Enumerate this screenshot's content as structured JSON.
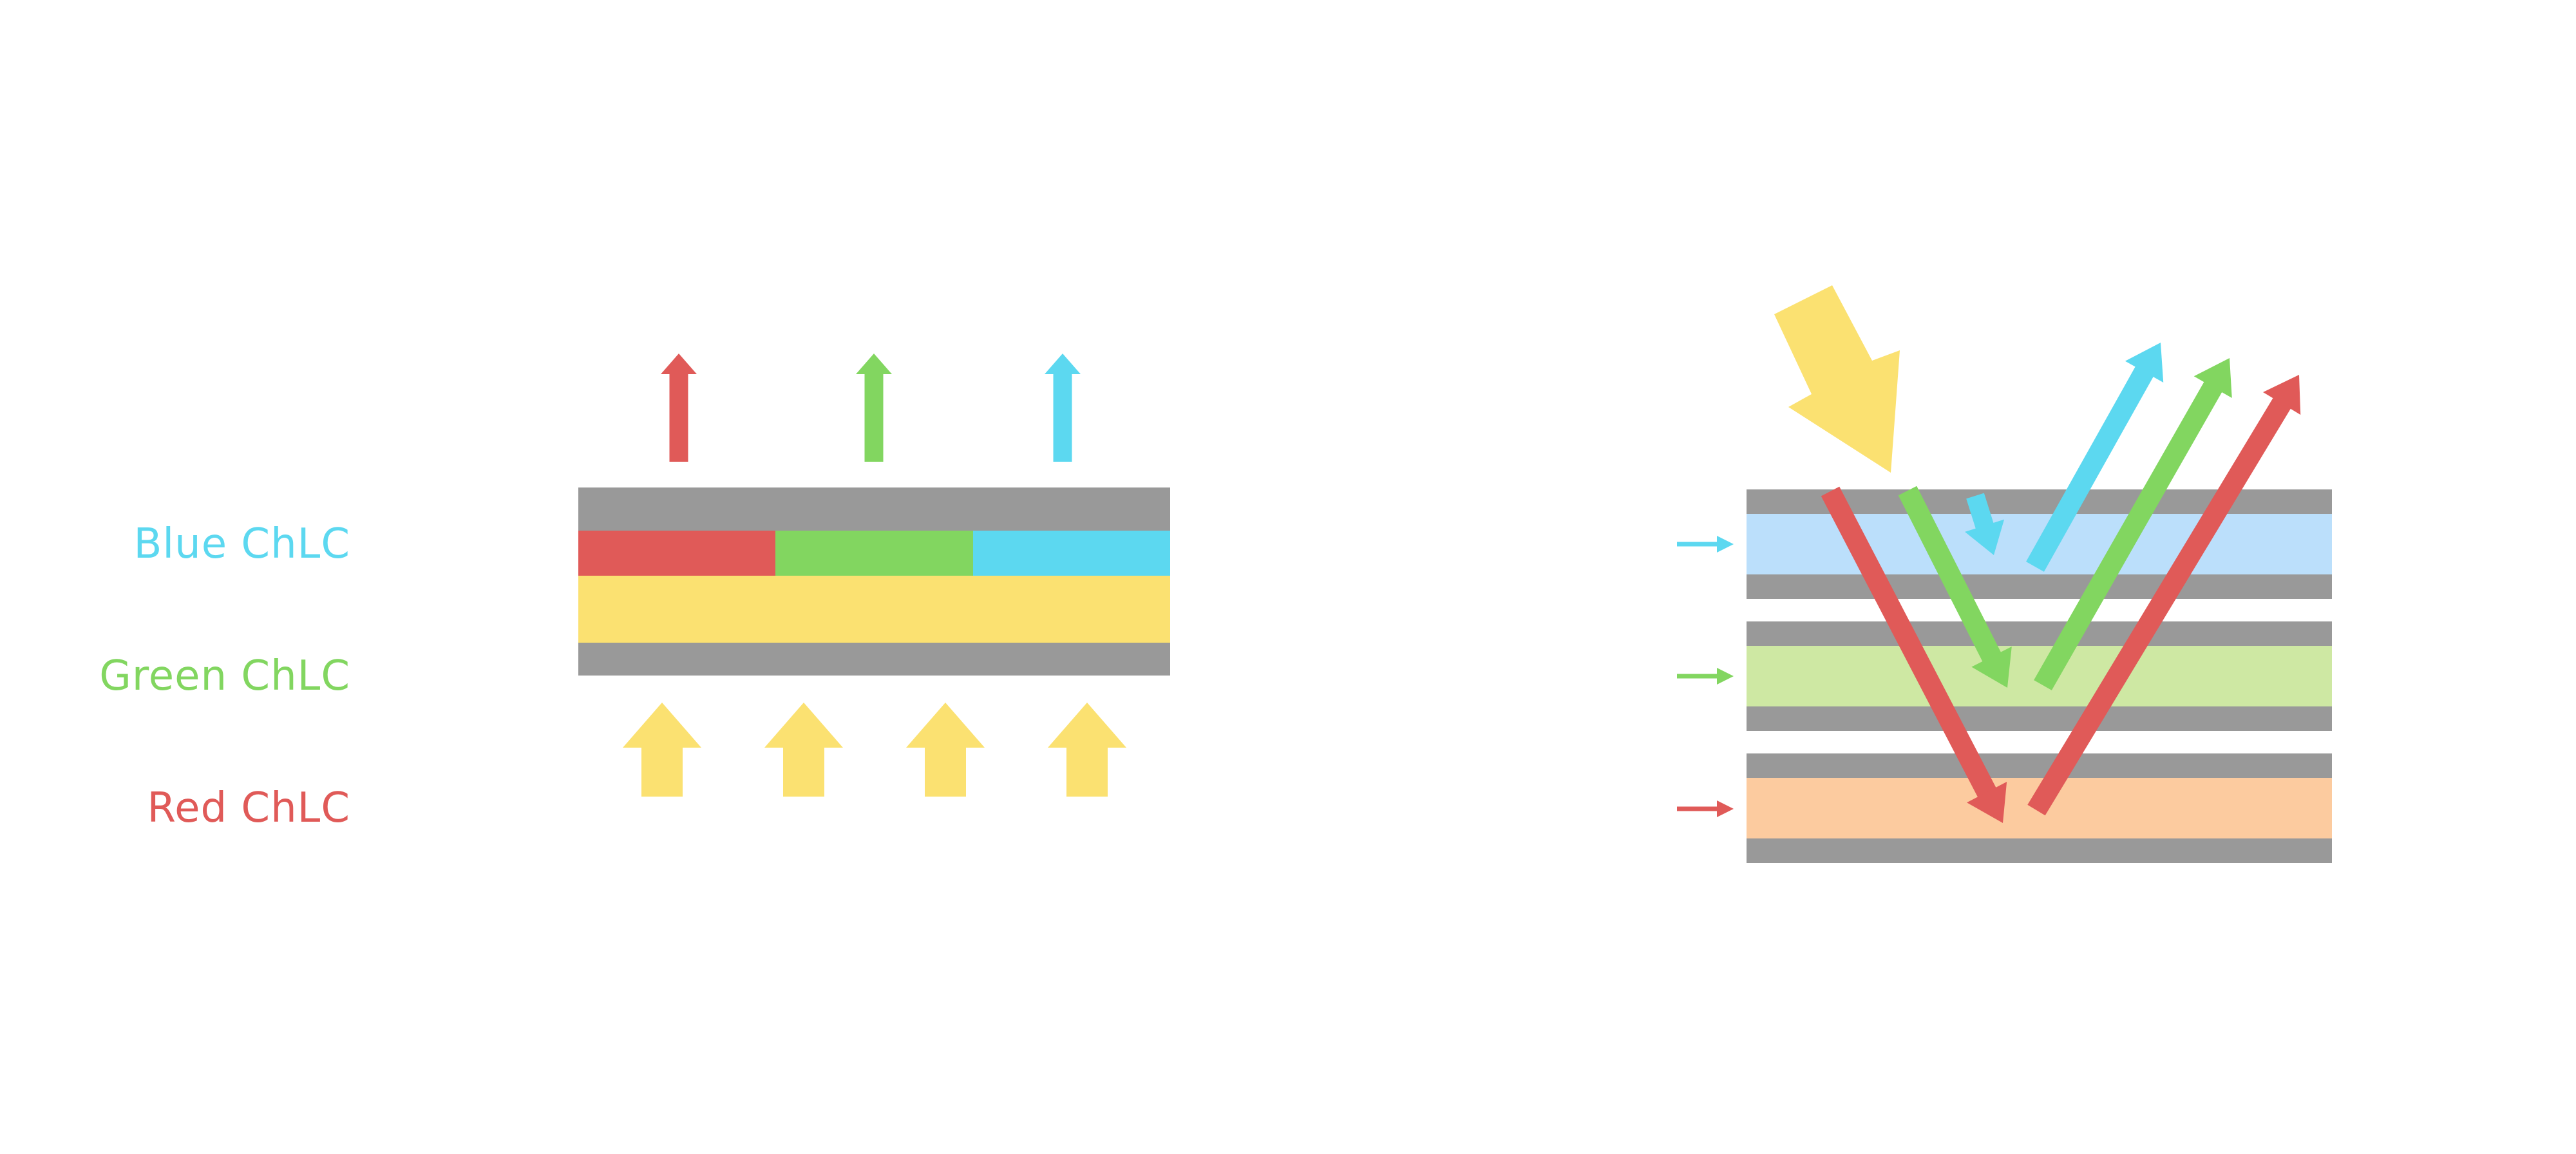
{
  "colors": {
    "red": "#E05A58",
    "green": "#82D660",
    "cyan": "#5CD8F0",
    "yellow": "#FBE171",
    "gray": "#999999",
    "pale_blue": "#BBDFFB",
    "pale_green": "#CEE8A3",
    "pale_orange": "#FCCB9F",
    "background": "#FFFFFF"
  },
  "right_diagram": {
    "labels": [
      {
        "text": "Blue ChLC"
      },
      {
        "text": "Green ChLC"
      },
      {
        "text": "Red ChLC"
      }
    ]
  }
}
